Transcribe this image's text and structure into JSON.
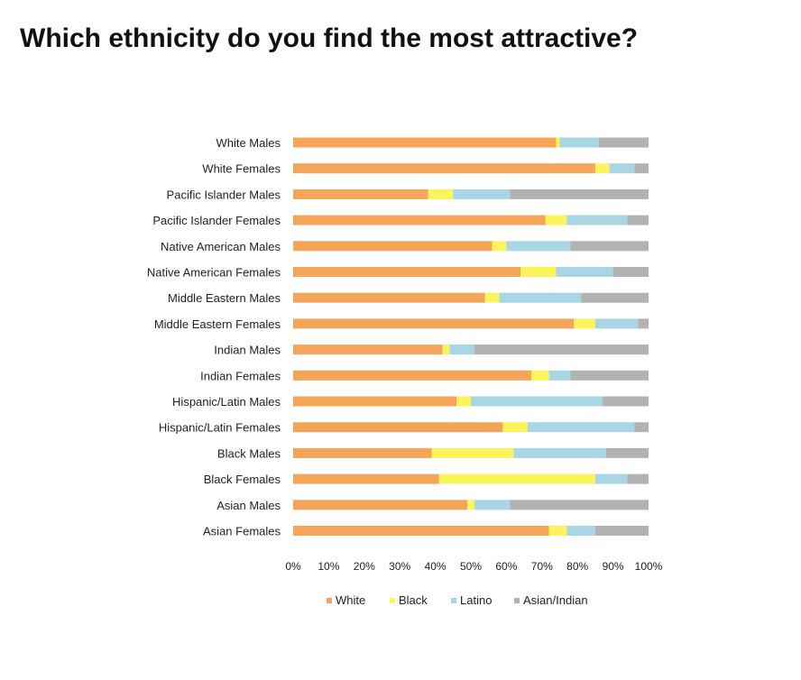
{
  "slide": {
    "title": "Which ethnicity do you find the most attractive?"
  },
  "chart_data": {
    "type": "bar",
    "orientation": "horizontal",
    "stacked": "percent",
    "title": "",
    "xlabel": "",
    "ylabel": "",
    "xlim": [
      0,
      100
    ],
    "x_ticks": [
      "0%",
      "10%",
      "20%",
      "30%",
      "40%",
      "50%",
      "60%",
      "70%",
      "80%",
      "90%",
      "100%"
    ],
    "grid": false,
    "legend_position": "bottom",
    "categories": [
      "White Males",
      "White Females",
      "Pacific Islander Males",
      "Pacific Islander Females",
      "Native American Males",
      "Native American Females",
      "Middle Eastern Males",
      "Middle Eastern Females",
      "Indian Males",
      "Indian Females",
      "Hispanic/Latin Males",
      "Hispanic/Latin Females",
      "Black Males",
      "Black Females",
      "Asian Males",
      "Asian Females"
    ],
    "series": [
      {
        "name": "White",
        "color": "#f4a55a",
        "values": [
          74,
          85,
          38,
          71,
          56,
          64,
          54,
          79,
          42,
          67,
          46,
          59,
          39,
          41,
          49,
          72
        ]
      },
      {
        "name": "Black",
        "color": "#fbf45a",
        "values": [
          1,
          4,
          7,
          6,
          4,
          10,
          4,
          6,
          2,
          5,
          4,
          7,
          23,
          44,
          2,
          5
        ]
      },
      {
        "name": "Latino",
        "color": "#a8d6e4",
        "values": [
          11,
          7,
          16,
          17,
          18,
          16,
          23,
          12,
          7,
          6,
          37,
          30,
          26,
          9,
          10,
          8
        ]
      },
      {
        "name": "Asian/Indian",
        "color": "#b2b2b2",
        "values": [
          14,
          4,
          39,
          6,
          22,
          10,
          19,
          3,
          49,
          22,
          13,
          4,
          12,
          6,
          39,
          15
        ]
      }
    ]
  }
}
